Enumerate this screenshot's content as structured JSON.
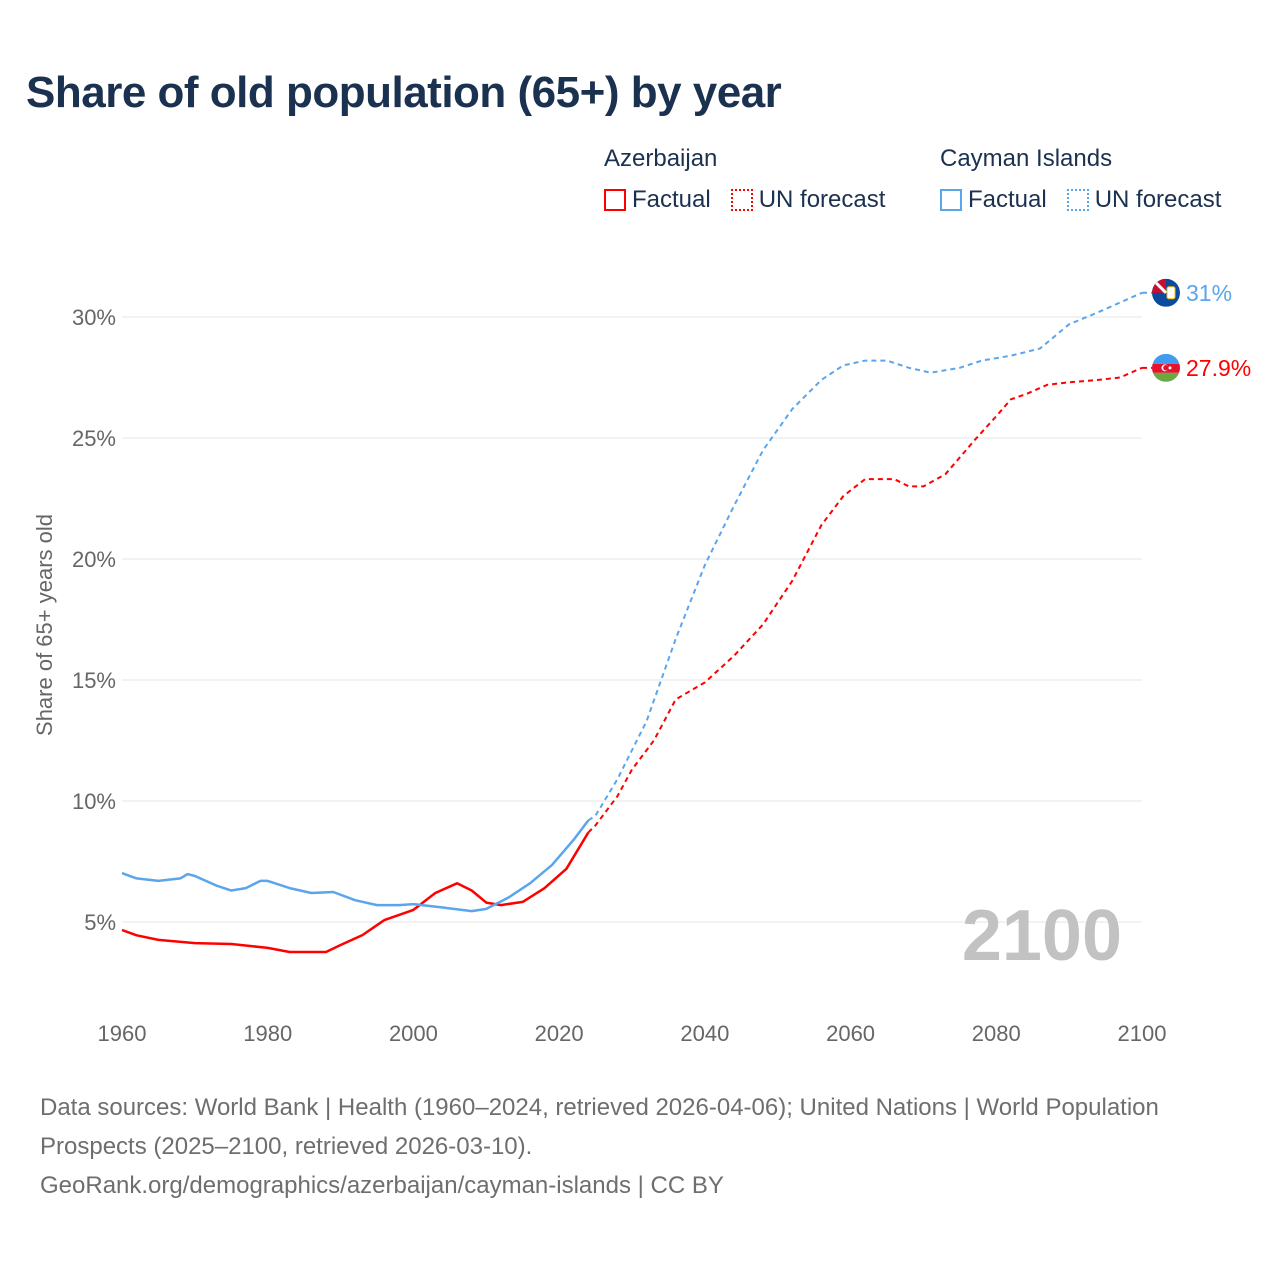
{
  "title": "Share of old population (65+) by year",
  "legend": {
    "groups": [
      {
        "name": "Azerbaijan",
        "factual": "Factual",
        "forecast": "UN forecast",
        "color": "#ff0000"
      },
      {
        "name": "Cayman Islands",
        "factual": "Factual",
        "forecast": "UN forecast",
        "color": "#5aa5ec"
      }
    ]
  },
  "year_watermark": "2100",
  "footer": {
    "sources": "Data sources: World Bank | Health (1960–2024, retrieved 2026-04-06); United Nations | World Population Prospects (2025–2100, retrieved 2026-03-10).",
    "link": "GeoRank.org/demographics/azerbaijan/cayman-islands | CC BY"
  },
  "chart_data": {
    "type": "line",
    "title": "Share of old population (65+) by year",
    "xlabel": "",
    "ylabel": "Share of 65+ years old",
    "xlim": [
      1960,
      2100
    ],
    "ylim": [
      0,
      32
    ],
    "x_ticks": [
      "1960",
      "1980",
      "2000",
      "2020",
      "2040",
      "2060",
      "2080",
      "2100"
    ],
    "y_ticks": [
      {
        "v": 5,
        "label": "5%"
      },
      {
        "v": 10,
        "label": "10%"
      },
      {
        "v": 15,
        "label": "15%"
      },
      {
        "v": 20,
        "label": "20%"
      },
      {
        "v": 25,
        "label": "25%"
      },
      {
        "v": 30,
        "label": "30%"
      }
    ],
    "grid": true,
    "legend_position": "top-right",
    "series": [
      {
        "name": "Azerbaijan",
        "color": "#ff0000",
        "end_label": "27.9%",
        "factual": [
          [
            1960,
            4.67
          ],
          [
            1962,
            4.45
          ],
          [
            1965,
            4.26
          ],
          [
            1970,
            4.13
          ],
          [
            1975,
            4.09
          ],
          [
            1980,
            3.93
          ],
          [
            1983,
            3.76
          ],
          [
            1988,
            3.76
          ],
          [
            1990,
            4.05
          ],
          [
            1993,
            4.46
          ],
          [
            1996,
            5.08
          ],
          [
            2000,
            5.5
          ],
          [
            2003,
            6.2
          ],
          [
            2006,
            6.6
          ],
          [
            2008,
            6.3
          ],
          [
            2010,
            5.8
          ],
          [
            2012,
            5.7
          ],
          [
            2015,
            5.83
          ],
          [
            2018,
            6.4
          ],
          [
            2021,
            7.2
          ],
          [
            2024,
            8.7
          ]
        ],
        "forecast": [
          [
            2024,
            8.7
          ],
          [
            2025,
            9.0
          ],
          [
            2028,
            10.2
          ],
          [
            2030,
            11.3
          ],
          [
            2033,
            12.5
          ],
          [
            2036,
            14.2
          ],
          [
            2040,
            14.9
          ],
          [
            2044,
            16.0
          ],
          [
            2048,
            17.3
          ],
          [
            2052,
            19.1
          ],
          [
            2056,
            21.4
          ],
          [
            2059,
            22.6
          ],
          [
            2062,
            23.3
          ],
          [
            2066,
            23.3
          ],
          [
            2068,
            23.0
          ],
          [
            2070,
            23.0
          ],
          [
            2073,
            23.5
          ],
          [
            2077,
            24.9
          ],
          [
            2080,
            25.9
          ],
          [
            2082,
            26.6
          ],
          [
            2084,
            26.8
          ],
          [
            2087,
            27.2
          ],
          [
            2090,
            27.3
          ],
          [
            2094,
            27.4
          ],
          [
            2097,
            27.5
          ],
          [
            2100,
            27.9
          ]
        ]
      },
      {
        "name": "Cayman Islands",
        "color": "#5aa5ec",
        "end_label": "31%",
        "factual": [
          [
            1960,
            7.02
          ],
          [
            1962,
            6.8
          ],
          [
            1965,
            6.7
          ],
          [
            1968,
            6.8
          ],
          [
            1969,
            6.98
          ],
          [
            1970,
            6.9
          ],
          [
            1973,
            6.5
          ],
          [
            1975,
            6.3
          ],
          [
            1977,
            6.4
          ],
          [
            1979,
            6.7
          ],
          [
            1980,
            6.7
          ],
          [
            1983,
            6.4
          ],
          [
            1986,
            6.2
          ],
          [
            1989,
            6.24
          ],
          [
            1992,
            5.9
          ],
          [
            1995,
            5.7
          ],
          [
            1998,
            5.7
          ],
          [
            2000,
            5.74
          ],
          [
            2004,
            5.6
          ],
          [
            2008,
            5.45
          ],
          [
            2010,
            5.54
          ],
          [
            2013,
            6.0
          ],
          [
            2016,
            6.6
          ],
          [
            2019,
            7.35
          ],
          [
            2022,
            8.4
          ],
          [
            2024,
            9.2
          ]
        ],
        "forecast": [
          [
            2024,
            9.2
          ],
          [
            2025,
            9.4
          ],
          [
            2028,
            10.9
          ],
          [
            2032,
            13.3
          ],
          [
            2036,
            16.7
          ],
          [
            2040,
            19.75
          ],
          [
            2044,
            22.2
          ],
          [
            2048,
            24.5
          ],
          [
            2052,
            26.2
          ],
          [
            2056,
            27.4
          ],
          [
            2059,
            28.0
          ],
          [
            2062,
            28.2
          ],
          [
            2065,
            28.2
          ],
          [
            2068,
            27.9
          ],
          [
            2071,
            27.7
          ],
          [
            2075,
            27.9
          ],
          [
            2078,
            28.2
          ],
          [
            2082,
            28.4
          ],
          [
            2086,
            28.7
          ],
          [
            2090,
            29.7
          ],
          [
            2094,
            30.2
          ],
          [
            2097,
            30.6
          ],
          [
            2100,
            31.0
          ]
        ]
      }
    ]
  }
}
